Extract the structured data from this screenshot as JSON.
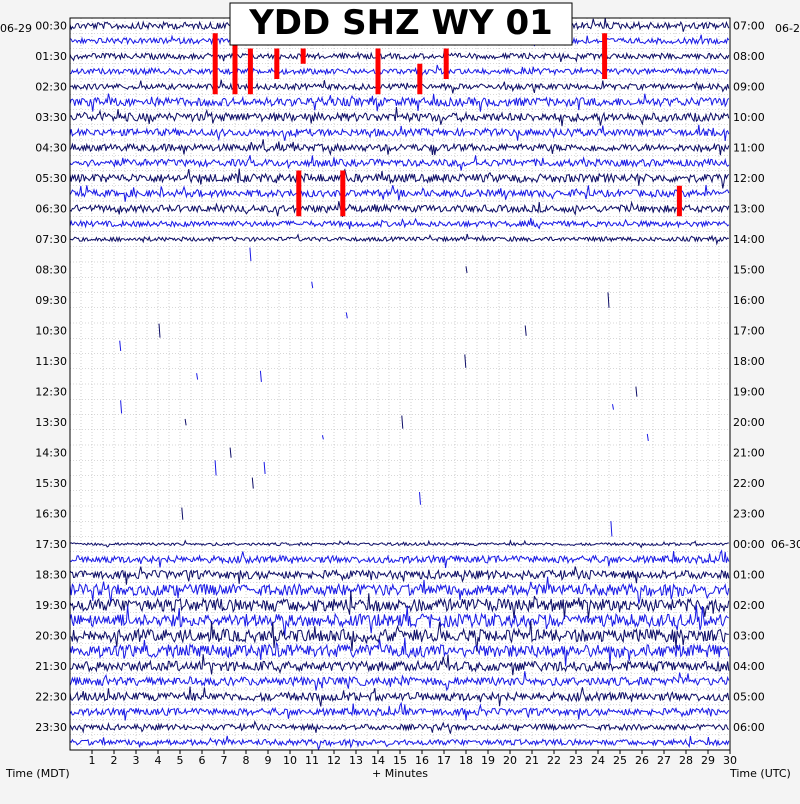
{
  "chart_data": {
    "type": "line",
    "title": "YDD SHZ WY 01",
    "xlabel": "+ Minutes",
    "left_axis_label": "Time (MDT)",
    "right_axis_label": "Time (UTC)",
    "left_date": "06-29",
    "right_date_top": "06-2",
    "right_date_mid": "06-30",
    "x_range": [
      0,
      30
    ],
    "x_ticks": [
      "1",
      "2",
      "3",
      "4",
      "5",
      "6",
      "7",
      "8",
      "9",
      "10",
      "11",
      "12",
      "13",
      "14",
      "15",
      "16",
      "17",
      "18",
      "19",
      "20",
      "21",
      "22",
      "23",
      "24",
      "25",
      "26",
      "27",
      "28",
      "29",
      "30"
    ],
    "left_time_labels": [
      "00:30",
      "01:30",
      "02:30",
      "03:30",
      "04:30",
      "05:30",
      "06:30",
      "07:30",
      "08:30",
      "09:30",
      "10:30",
      "11:30",
      "12:30",
      "13:30",
      "14:30",
      "15:30",
      "16:30",
      "17:30",
      "18:30",
      "19:30",
      "20:30",
      "21:30",
      "22:30",
      "23:30"
    ],
    "right_time_labels": [
      "07:00",
      "08:00",
      "09:00",
      "10:00",
      "11:00",
      "12:00",
      "13:00",
      "14:00",
      "15:00",
      "16:00",
      "17:00",
      "18:00",
      "19:00",
      "20:00",
      "21:00",
      "22:00",
      "23:00",
      "00:00",
      "01:00",
      "02:00",
      "03:00",
      "04:00",
      "05:00",
      "06:00"
    ],
    "trace_count": 48,
    "grid": true,
    "colors": {
      "trace_dark": "#0d0d66",
      "trace_blue": "#1a1ae6",
      "clipped": "#ff0000",
      "grid": "#b0b0b0",
      "plot_bg": "#ffffff",
      "page_bg": "#f4f4f4"
    },
    "trace_activity": [
      0.5,
      0.4,
      0.4,
      0.4,
      0.4,
      0.6,
      0.6,
      0.5,
      0.5,
      0.5,
      0.6,
      0.5,
      0.5,
      0.4,
      0.3,
      0.0,
      0.0,
      0.0,
      0.0,
      0.0,
      0.0,
      0.0,
      0.0,
      0.0,
      0.0,
      0.0,
      0.0,
      0.0,
      0.0,
      0.0,
      0.0,
      0.0,
      0.0,
      0.0,
      0.2,
      0.5,
      0.6,
      0.8,
      0.9,
      0.9,
      0.9,
      0.9,
      0.7,
      0.6,
      0.6,
      0.5,
      0.4,
      0.4
    ],
    "clipped_events": [
      {
        "row": 1,
        "minute": 6.6,
        "rows_span": 4
      },
      {
        "row": 1,
        "minute": 7.5,
        "rows_span": 4
      },
      {
        "row": 2,
        "minute": 8.2,
        "rows_span": 3
      },
      {
        "row": 2,
        "minute": 9.4,
        "rows_span": 2
      },
      {
        "row": 2,
        "minute": 10.6,
        "rows_span": 1
      },
      {
        "row": 2,
        "minute": 14.0,
        "rows_span": 3
      },
      {
        "row": 3,
        "minute": 15.9,
        "rows_span": 2
      },
      {
        "row": 2,
        "minute": 17.1,
        "rows_span": 2
      },
      {
        "row": 1,
        "minute": 24.3,
        "rows_span": 3
      },
      {
        "row": 10,
        "minute": 10.4,
        "rows_span": 3
      },
      {
        "row": 10,
        "minute": 12.4,
        "rows_span": 3
      },
      {
        "row": 11,
        "minute": 27.7,
        "rows_span": 2
      }
    ]
  }
}
